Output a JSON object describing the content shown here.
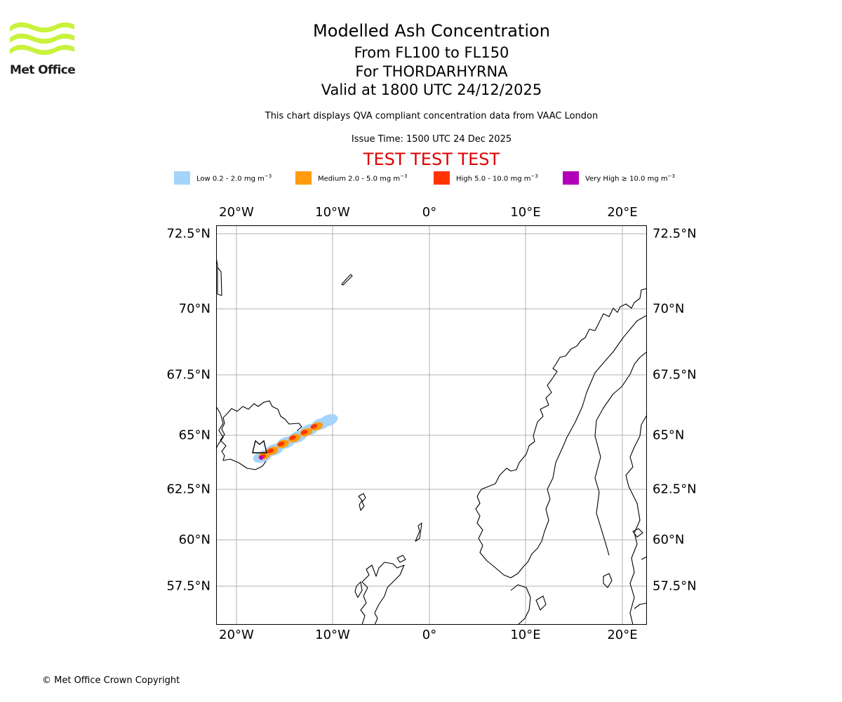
{
  "logo": {
    "text": "Met Office",
    "color": "#c8f23c"
  },
  "header": {
    "title": "Modelled Ash Concentration",
    "subtitle_levels": "From FL100 to FL150",
    "subtitle_volcano": "For THORDARHYRNA",
    "subtitle_valid": "Valid at 1800 UTC 24/12/2025",
    "note": "This chart displays QVA compliant concentration data from VAAC London",
    "issue_time": "Issue Time: 1500 UTC 24 Dec 2025",
    "test_banner": "TEST TEST TEST"
  },
  "legend": [
    {
      "label": "Low 0.2 - 2.0 mg m",
      "color": "#a5d4fb"
    },
    {
      "label": "Medium 2.0 - 5.0 mg m",
      "color": "#ff9b0f"
    },
    {
      "label": "High 5.0 - 10.0 mg m",
      "color": "#ff3300"
    },
    {
      "label": "Very High ≥ 10.0 mg m",
      "color": "#b000b8"
    }
  ],
  "legend_unit_exponent": "−3",
  "map": {
    "lon_range": [
      -22,
      22.5
    ],
    "lat_range": [
      55.8,
      72.8
    ],
    "lon_ticks": [
      {
        "value": -20,
        "label": "20°W"
      },
      {
        "value": -10,
        "label": "10°W"
      },
      {
        "value": 0,
        "label": "0°"
      },
      {
        "value": 10,
        "label": "10°E"
      },
      {
        "value": 20,
        "label": "20°E"
      }
    ],
    "lat_ticks": [
      {
        "value": 72.5,
        "label": "72.5°N"
      },
      {
        "value": 70,
        "label": "70°N"
      },
      {
        "value": 67.5,
        "label": "67.5°N"
      },
      {
        "value": 65,
        "label": "65°N"
      },
      {
        "value": 62.5,
        "label": "62.5°N"
      },
      {
        "value": 60,
        "label": "60°N"
      },
      {
        "value": 57.5,
        "label": "57.5°N"
      }
    ],
    "grid_color": "#b0b0b0",
    "ash_plume": {
      "low_blobs": [
        [
          -17.2,
          64.3
        ],
        [
          -16.0,
          64.6
        ],
        [
          -14.8,
          64.9
        ],
        [
          -13.6,
          65.15
        ],
        [
          -12.4,
          65.45
        ],
        [
          -11.2,
          65.7
        ],
        [
          -10.4,
          65.85
        ]
      ],
      "medium_blobs": [
        [
          -17.0,
          64.35
        ],
        [
          -16.2,
          64.55
        ],
        [
          -15.1,
          64.85
        ],
        [
          -13.9,
          65.1
        ],
        [
          -12.7,
          65.35
        ],
        [
          -11.6,
          65.6
        ]
      ],
      "high_blobs": [
        [
          -17.2,
          64.3
        ],
        [
          -16.4,
          64.55
        ],
        [
          -15.3,
          64.85
        ],
        [
          -14.1,
          65.12
        ],
        [
          -12.9,
          65.35
        ],
        [
          -11.9,
          65.6
        ]
      ],
      "very_high_blobs": [
        [
          -17.35,
          64.25
        ]
      ],
      "volcano_symbol": "∩"
    }
  },
  "footer": {
    "copyright": "© Met Office Crown Copyright"
  }
}
